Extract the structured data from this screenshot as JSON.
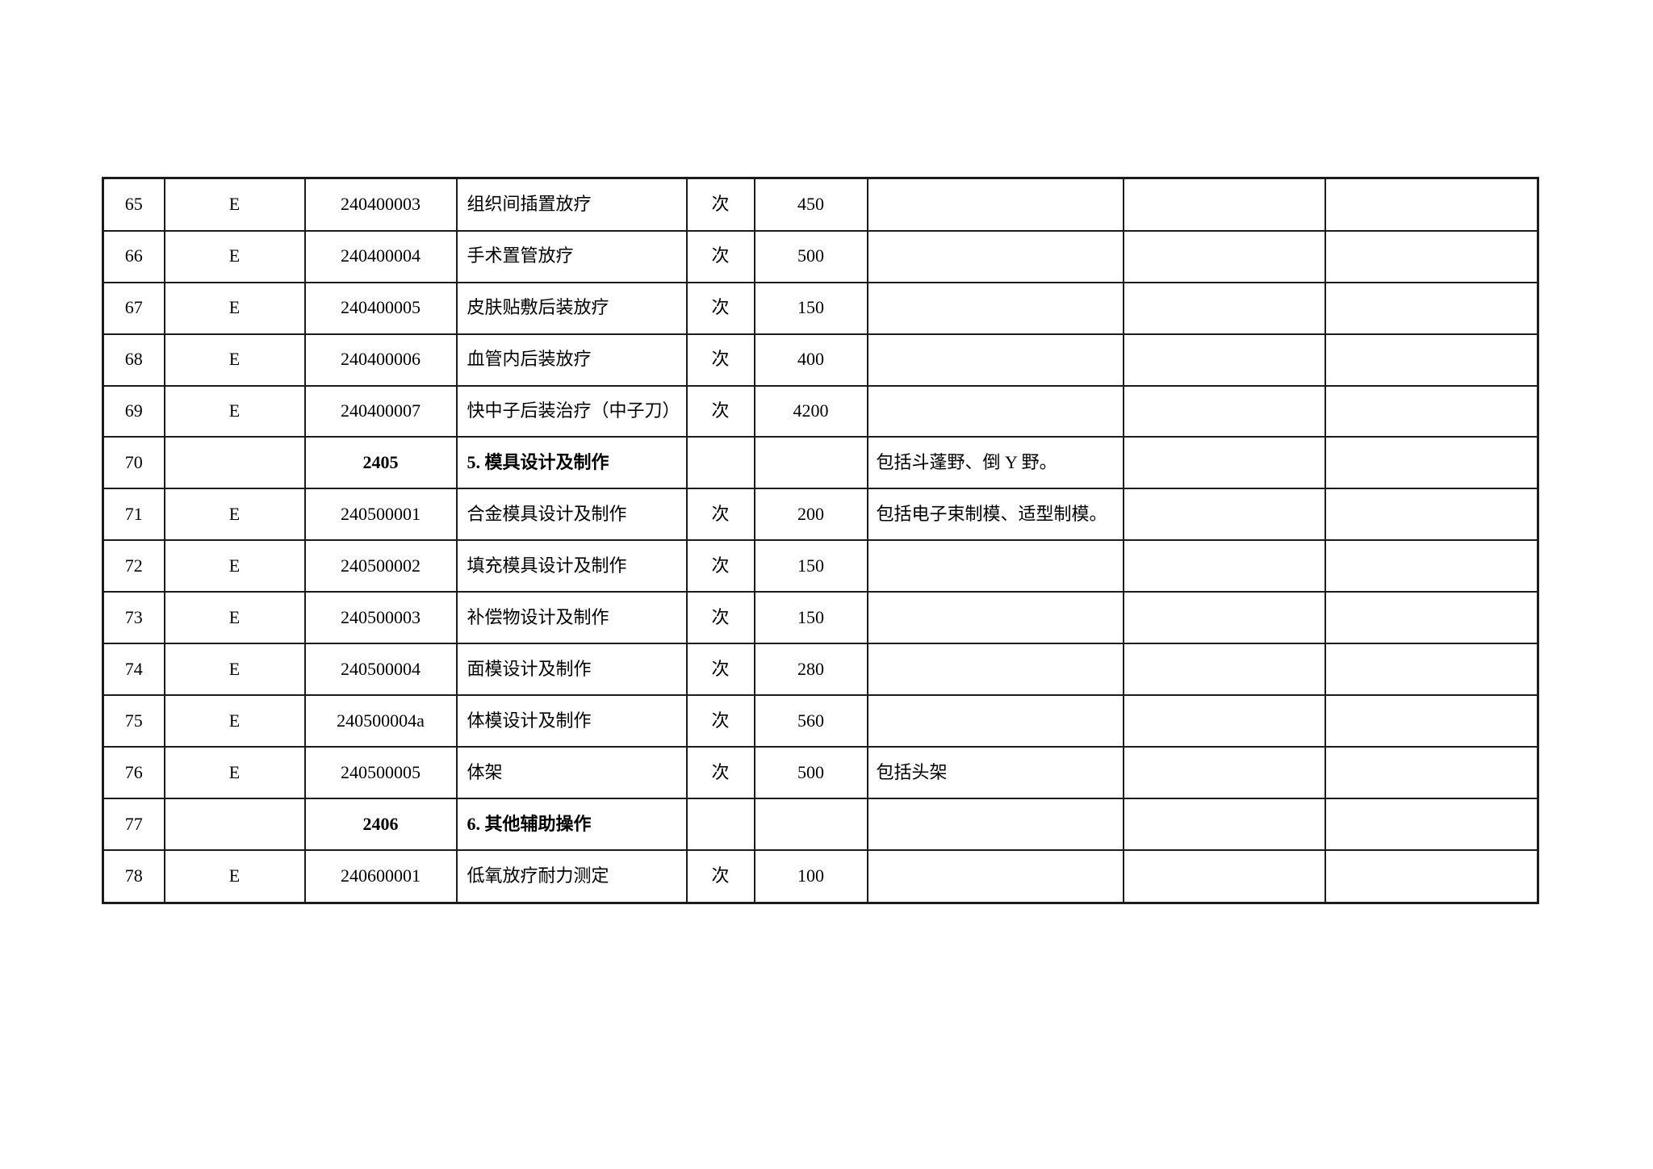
{
  "document": {
    "description": "医疗服务收费项目表（放射治疗部分，第65-78行）",
    "background_color": "#ffffff",
    "border_color": "#1c1c1c",
    "text_color": "#000000"
  },
  "table": {
    "rows": [
      {
        "section": false,
        "cells": [
          "65",
          "E",
          "240400003",
          "组织间插置放疗",
          "次",
          "450",
          "",
          "",
          ""
        ]
      },
      {
        "section": false,
        "cells": [
          "66",
          "E",
          "240400004",
          "手术置管放疗",
          "次",
          "500",
          "",
          "",
          ""
        ]
      },
      {
        "section": false,
        "cells": [
          "67",
          "E",
          "240400005",
          "皮肤贴敷后装放疗",
          "次",
          "150",
          "",
          "",
          ""
        ]
      },
      {
        "section": false,
        "cells": [
          "68",
          "E",
          "240400006",
          "血管内后装放疗",
          "次",
          "400",
          "",
          "",
          ""
        ]
      },
      {
        "section": false,
        "cells": [
          "69",
          "E",
          "240400007",
          "快中子后装治疗（中子刀）",
          "次",
          "4200",
          "",
          "",
          ""
        ]
      },
      {
        "section": true,
        "cells": [
          "70",
          "",
          "2405",
          "5. 模具设计及制作",
          "",
          "",
          "包括斗蓬野、倒 Y 野。",
          "",
          ""
        ]
      },
      {
        "section": false,
        "cells": [
          "71",
          "E",
          "240500001",
          "合金模具设计及制作",
          "次",
          "200",
          "包括电子束制模、适型制模。",
          "",
          ""
        ]
      },
      {
        "section": false,
        "cells": [
          "72",
          "E",
          "240500002",
          "填充模具设计及制作",
          "次",
          "150",
          "",
          "",
          ""
        ]
      },
      {
        "section": false,
        "cells": [
          "73",
          "E",
          "240500003",
          "补偿物设计及制作",
          "次",
          "150",
          "",
          "",
          ""
        ]
      },
      {
        "section": false,
        "cells": [
          "74",
          "E",
          "240500004",
          "面模设计及制作",
          "次",
          "280",
          "",
          "",
          ""
        ]
      },
      {
        "section": false,
        "cells": [
          "75",
          "E",
          "240500004a",
          "体模设计及制作",
          "次",
          "560",
          "",
          "",
          ""
        ]
      },
      {
        "section": false,
        "cells": [
          "76",
          "E",
          "240500005",
          "体架",
          "次",
          "500",
          "包括头架",
          "",
          ""
        ]
      },
      {
        "section": true,
        "cells": [
          "77",
          "",
          "2406",
          "6. 其他辅助操作",
          "",
          "",
          "",
          "",
          ""
        ]
      },
      {
        "section": false,
        "cells": [
          "78",
          "E",
          "240600001",
          "低氧放疗耐力测定",
          "次",
          "100",
          "",
          "",
          ""
        ]
      }
    ]
  }
}
